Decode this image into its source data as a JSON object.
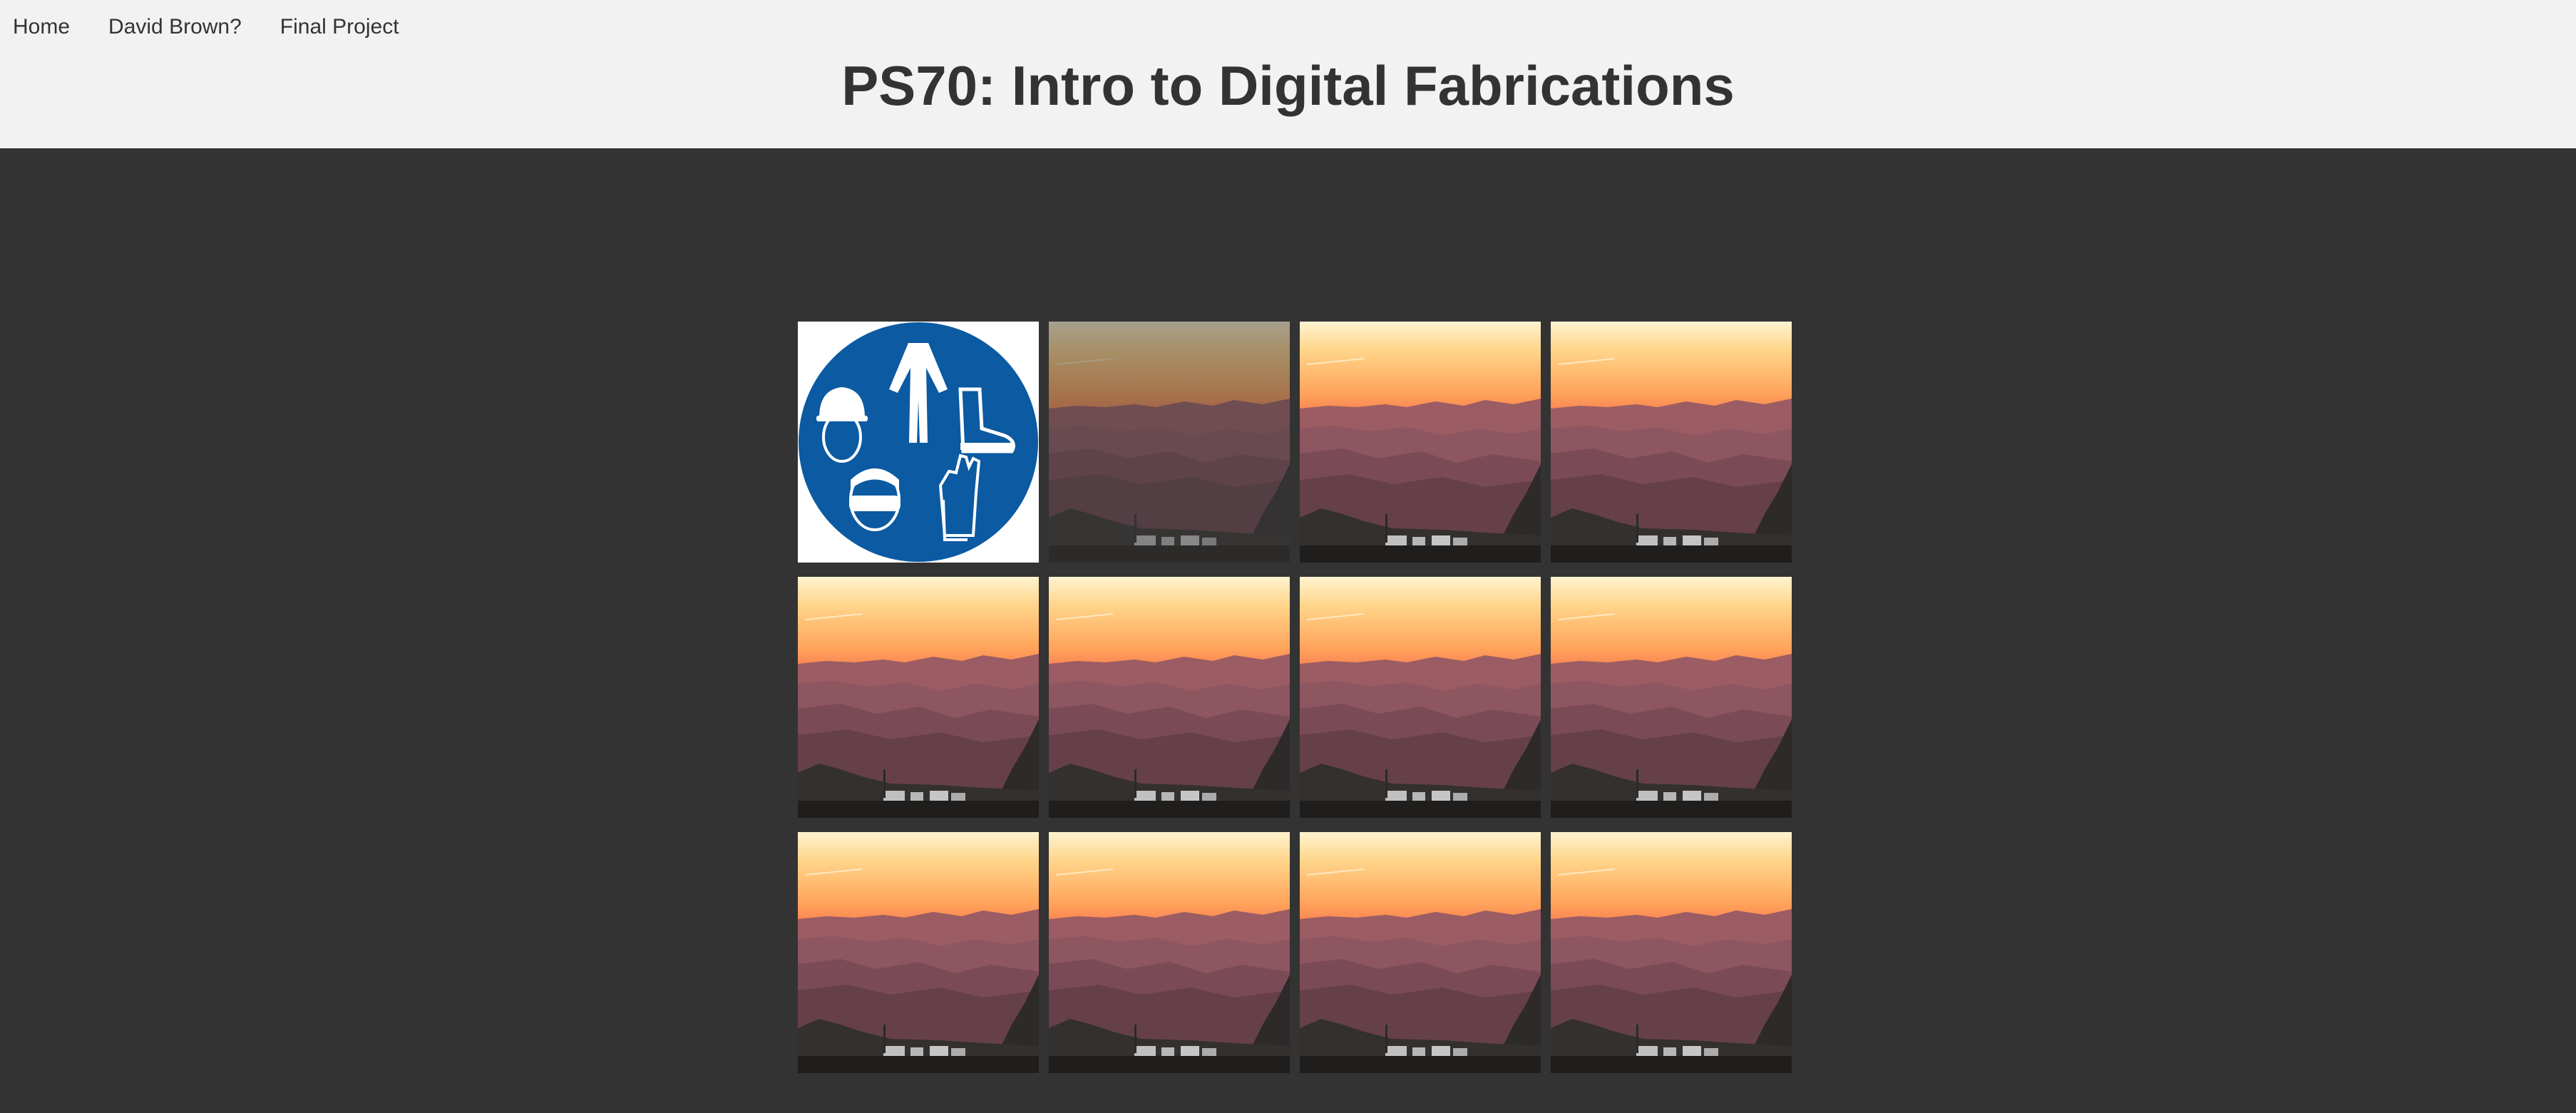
{
  "nav": {
    "items": [
      {
        "label": "Home"
      },
      {
        "label": "David Brown?"
      },
      {
        "label": "Final Project"
      }
    ]
  },
  "header": {
    "title": "PS70: Intro to Digital Fabrications"
  },
  "gallery": {
    "tiles": [
      {
        "image": "safety-ppe-sign",
        "state": "normal"
      },
      {
        "image": "mountain-sunset-photo",
        "state": "hover-dim"
      },
      {
        "image": "mountain-sunset-photo",
        "state": "normal"
      },
      {
        "image": "mountain-sunset-photo",
        "state": "normal"
      },
      {
        "image": "mountain-sunset-photo",
        "state": "normal"
      },
      {
        "image": "mountain-sunset-photo",
        "state": "normal"
      },
      {
        "image": "mountain-sunset-photo",
        "state": "normal"
      },
      {
        "image": "mountain-sunset-photo",
        "state": "normal"
      },
      {
        "image": "mountain-sunset-photo",
        "state": "normal"
      },
      {
        "image": "mountain-sunset-photo",
        "state": "normal"
      },
      {
        "image": "mountain-sunset-photo",
        "state": "normal"
      },
      {
        "image": "mountain-sunset-photo",
        "state": "normal"
      }
    ]
  },
  "colors": {
    "header_bg": "#f2f2f2",
    "page_bg": "#333333",
    "text": "#333333",
    "sign_blue": "#0b5aa2"
  }
}
